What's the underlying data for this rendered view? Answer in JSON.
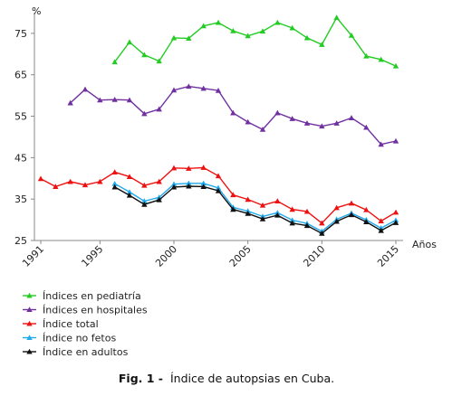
{
  "chart_data": {
    "type": "line",
    "ylabel": "%",
    "xlabel": "Años",
    "ylim": [
      25,
      80
    ],
    "yticks": [
      25,
      35,
      45,
      55,
      65,
      75
    ],
    "xlim": [
      1991,
      2015
    ],
    "xticks": [
      1991,
      1995,
      2000,
      2005,
      2010,
      2015
    ],
    "grid": false,
    "legend_position": "bottom-left",
    "series": [
      {
        "name": "Índices en pediatría",
        "color": "#22cc22",
        "marker": "triangle",
        "x": [
          1996,
          1997,
          1998,
          1999,
          2000,
          2001,
          2002,
          2003,
          2004,
          2005,
          2006,
          2007,
          2008,
          2009,
          2010,
          2011,
          2012,
          2013,
          2014,
          2015
        ],
        "y": [
          68.1,
          72.9,
          69.8,
          68.3,
          73.9,
          73.8,
          76.8,
          77.6,
          75.6,
          74.4,
          75.5,
          77.6,
          76.3,
          73.9,
          72.3,
          78.8,
          74.5,
          69.5,
          68.7,
          67.1
        ]
      },
      {
        "name": "Índices en hospitales",
        "color": "#7030a0",
        "marker": "triangle",
        "x": [
          1993,
          1994,
          1995,
          1996,
          1997,
          1998,
          1999,
          2000,
          2001,
          2002,
          2003,
          2004,
          2005,
          2006,
          2007,
          2008,
          2009,
          2010,
          2011,
          2012,
          2013,
          2014,
          2015
        ],
        "y": [
          58.2,
          61.5,
          58.9,
          59.0,
          58.9,
          55.6,
          56.7,
          61.3,
          62.2,
          61.7,
          61.2,
          55.8,
          53.6,
          51.8,
          55.8,
          54.4,
          53.3,
          52.6,
          53.3,
          54.6,
          52.3,
          48.2,
          49.0
        ]
      },
      {
        "name": "Índice total",
        "color": "#ee1111",
        "marker": "triangle",
        "x": [
          1991,
          1992,
          1993,
          1994,
          1995,
          1996,
          1997,
          1998,
          1999,
          2000,
          2001,
          2002,
          2003,
          2004,
          2005,
          2006,
          2007,
          2008,
          2009,
          2010,
          2011,
          2012,
          2013,
          2014,
          2015
        ],
        "y": [
          39.9,
          38.0,
          39.2,
          38.4,
          39.2,
          41.5,
          40.4,
          38.3,
          39.2,
          42.5,
          42.4,
          42.6,
          40.6,
          36.0,
          34.9,
          33.5,
          34.5,
          32.5,
          32.0,
          29.2,
          32.9,
          34.0,
          32.4,
          29.7,
          31.8
        ]
      },
      {
        "name": "Índice no fetos",
        "color": "#22aaee",
        "marker": "triangle",
        "x": [
          1996,
          1997,
          1998,
          1999,
          2000,
          2001,
          2002,
          2003,
          2004,
          2005,
          2006,
          2007,
          2008,
          2009,
          2010,
          2011,
          2012,
          2013,
          2014,
          2015
        ],
        "y": [
          38.7,
          36.7,
          34.5,
          35.4,
          38.6,
          38.8,
          38.8,
          37.7,
          33.0,
          32.1,
          30.8,
          31.7,
          29.9,
          29.1,
          27.2,
          30.1,
          31.6,
          30.0,
          28.0,
          29.9
        ]
      },
      {
        "name": "Índice en adultos",
        "color": "#111111",
        "marker": "triangle",
        "x": [
          1996,
          1997,
          1998,
          1999,
          2000,
          2001,
          2002,
          2003,
          2004,
          2005,
          2006,
          2007,
          2008,
          2009,
          2010,
          2011,
          2012,
          2013,
          2014,
          2015
        ],
        "y": [
          37.9,
          35.9,
          33.7,
          34.8,
          37.9,
          38.1,
          38.0,
          37.0,
          32.5,
          31.5,
          30.2,
          31.1,
          29.2,
          28.6,
          26.7,
          29.6,
          31.2,
          29.5,
          27.4,
          29.3
        ]
      }
    ],
    "caption_label": "Fig. 1 -",
    "caption_text": "Índice de autopsias en Cuba."
  }
}
